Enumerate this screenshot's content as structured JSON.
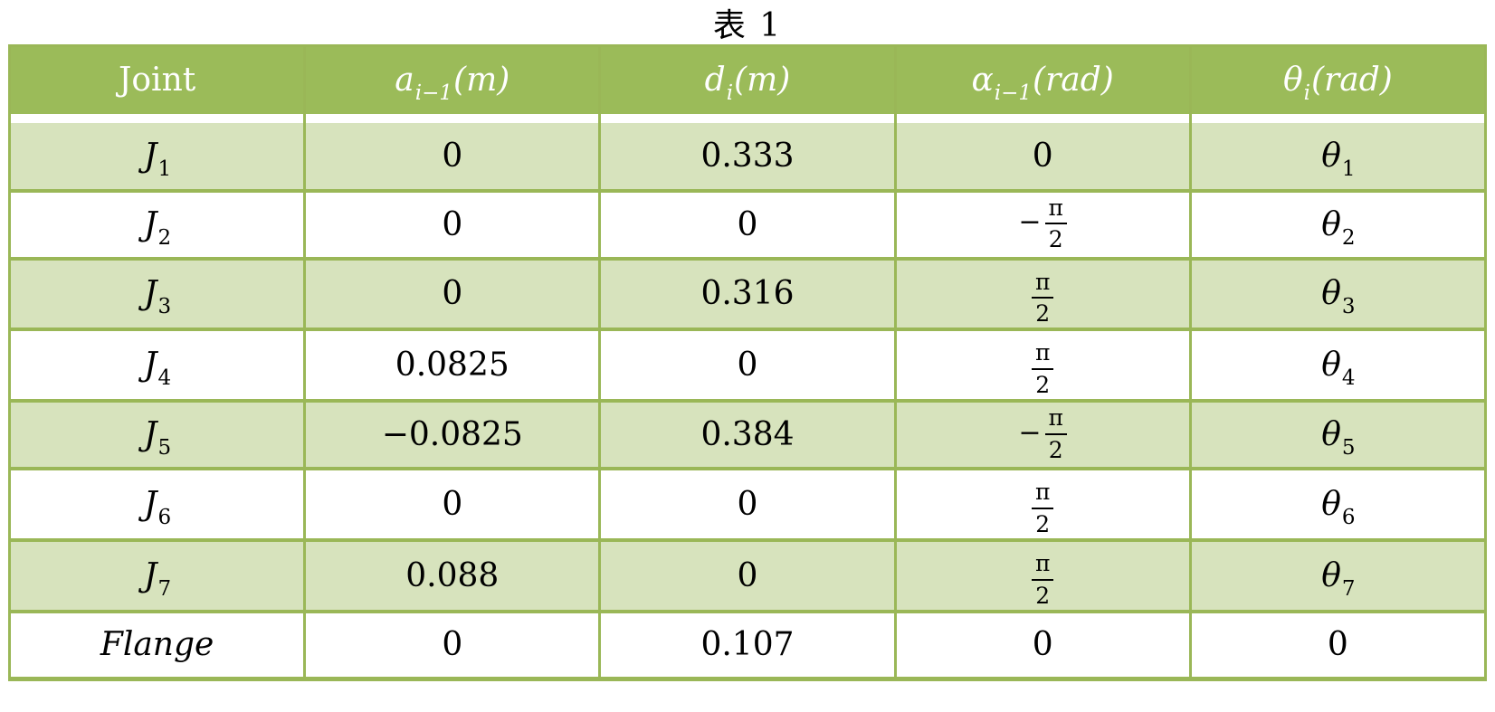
{
  "caption": "表 1",
  "colors": {
    "header_bg": "#9bbb59",
    "border": "#9ab757",
    "row_shaded_bg": "#d7e3bd",
    "row_plain_bg": "#ffffff",
    "header_text": "#ffffff",
    "body_text": "#000000"
  },
  "table": {
    "headers": [
      {
        "type": "text",
        "text": "Joint"
      },
      {
        "type": "math",
        "base": "a",
        "sub": "i−1",
        "tail": "(m)"
      },
      {
        "type": "math",
        "base": "d",
        "sub": "i",
        "tail": "(m)"
      },
      {
        "type": "math",
        "base": "α",
        "sub": "i−1",
        "tail": "(rad)"
      },
      {
        "type": "math",
        "base": "θ",
        "sub": "i",
        "tail": "(rad)"
      }
    ],
    "rows": [
      {
        "cells": [
          {
            "type": "math",
            "base": "J",
            "sub": "1"
          },
          {
            "type": "text",
            "text": "0"
          },
          {
            "type": "text",
            "text": "0.333"
          },
          {
            "type": "text",
            "text": "0"
          },
          {
            "type": "math",
            "base": "θ",
            "sub": "1"
          }
        ]
      },
      {
        "cells": [
          {
            "type": "math",
            "base": "J",
            "sub": "2"
          },
          {
            "type": "text",
            "text": "0"
          },
          {
            "type": "text",
            "text": "0"
          },
          {
            "type": "frac",
            "sign": "−",
            "num": "π",
            "den": "2"
          },
          {
            "type": "math",
            "base": "θ",
            "sub": "2"
          }
        ]
      },
      {
        "cells": [
          {
            "type": "math",
            "base": "J",
            "sub": "3"
          },
          {
            "type": "text",
            "text": "0"
          },
          {
            "type": "text",
            "text": "0.316"
          },
          {
            "type": "frac",
            "sign": "",
            "num": "π",
            "den": "2"
          },
          {
            "type": "math",
            "base": "θ",
            "sub": "3"
          }
        ]
      },
      {
        "cells": [
          {
            "type": "math",
            "base": "J",
            "sub": "4"
          },
          {
            "type": "text",
            "text": "0.0825"
          },
          {
            "type": "text",
            "text": "0"
          },
          {
            "type": "frac",
            "sign": "",
            "num": "π",
            "den": "2"
          },
          {
            "type": "math",
            "base": "θ",
            "sub": "4"
          }
        ]
      },
      {
        "cells": [
          {
            "type": "math",
            "base": "J",
            "sub": "5"
          },
          {
            "type": "text",
            "text": "−0.0825"
          },
          {
            "type": "text",
            "text": "0.384"
          },
          {
            "type": "frac",
            "sign": "−",
            "num": "π",
            "den": "2"
          },
          {
            "type": "math",
            "base": "θ",
            "sub": "5"
          }
        ]
      },
      {
        "cells": [
          {
            "type": "math",
            "base": "J",
            "sub": "6"
          },
          {
            "type": "text",
            "text": "0"
          },
          {
            "type": "text",
            "text": "0"
          },
          {
            "type": "frac",
            "sign": "",
            "num": "π",
            "den": "2"
          },
          {
            "type": "math",
            "base": "θ",
            "sub": "6"
          }
        ]
      },
      {
        "cells": [
          {
            "type": "math",
            "base": "J",
            "sub": "7"
          },
          {
            "type": "text",
            "text": "0.088"
          },
          {
            "type": "text",
            "text": "0"
          },
          {
            "type": "frac",
            "sign": "",
            "num": "π",
            "den": "2"
          },
          {
            "type": "math",
            "base": "θ",
            "sub": "7"
          }
        ]
      },
      {
        "cells": [
          {
            "type": "text",
            "text": "Flange",
            "italic": true
          },
          {
            "type": "text",
            "text": "0"
          },
          {
            "type": "text",
            "text": "0.107"
          },
          {
            "type": "text",
            "text": "0"
          },
          {
            "type": "text",
            "text": "0"
          }
        ]
      }
    ]
  }
}
